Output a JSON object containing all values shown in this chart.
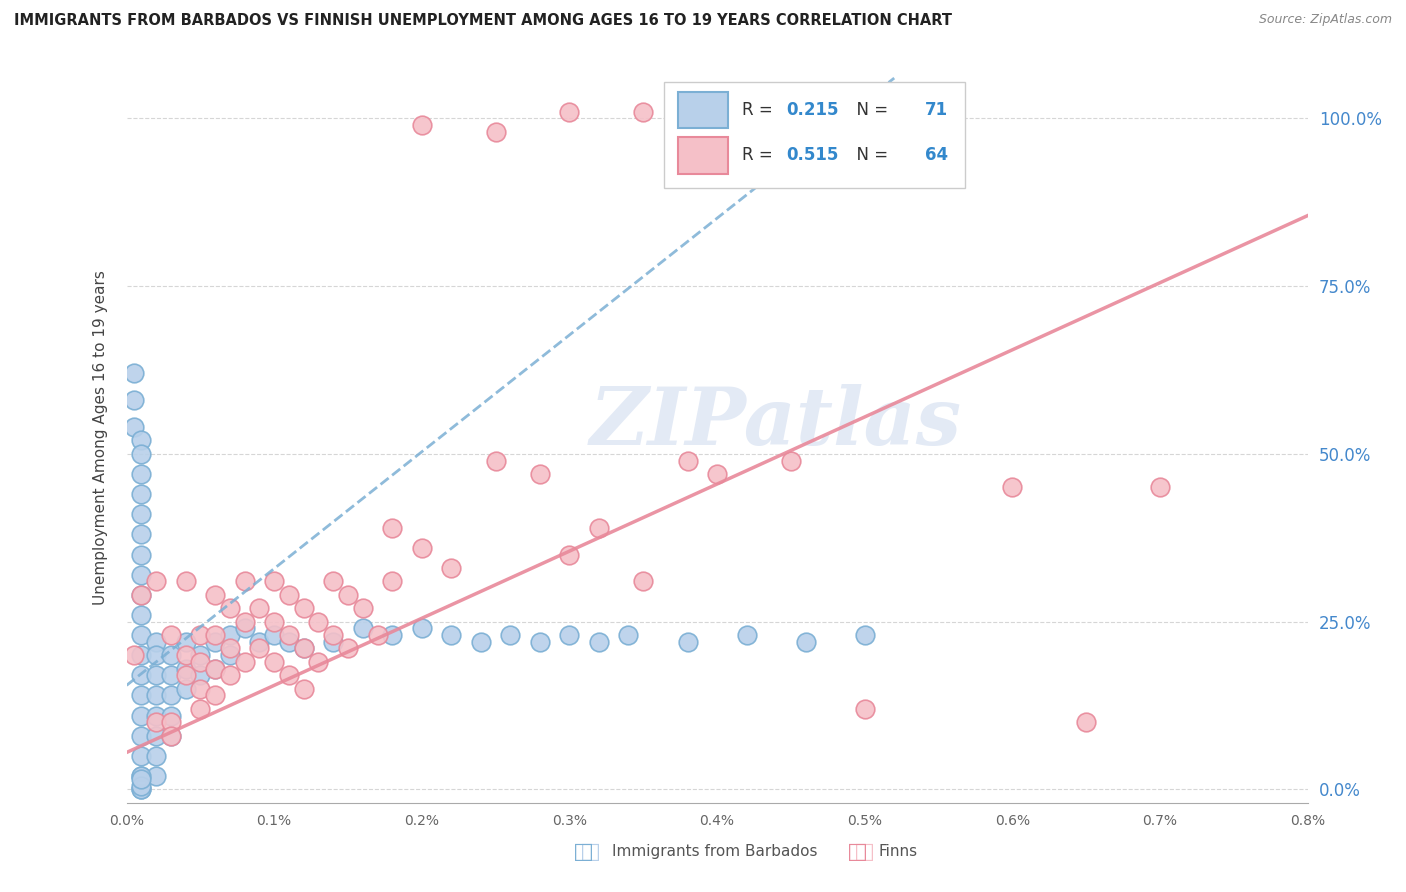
{
  "title": "IMMIGRANTS FROM BARBADOS VS FINNISH UNEMPLOYMENT AMONG AGES 16 TO 19 YEARS CORRELATION CHART",
  "source": "Source: ZipAtlas.com",
  "ylabel": "Unemployment Among Ages 16 to 19 years",
  "legend_label_blue": "Immigrants from Barbados",
  "legend_label_pink": "Finns",
  "watermark": "ZIPatlas",
  "background_color": "#ffffff",
  "blue_color": "#7bafd4",
  "blue_fill": "#b8d0ea",
  "pink_color": "#e8899a",
  "pink_fill": "#f5c0c8",
  "blue_R": 0.215,
  "blue_N": 71,
  "pink_R": 0.515,
  "pink_N": 64,
  "xlim": [
    0.0,
    0.008
  ],
  "ylim": [
    -0.02,
    1.07
  ],
  "x_ticks": [
    0.0,
    0.001,
    0.002,
    0.003,
    0.004,
    0.005,
    0.006,
    0.007,
    0.008
  ],
  "y_ticks": [
    0.0,
    0.25,
    0.5,
    0.75,
    1.0
  ],
  "blue_scatter": [
    [
      5e-05,
      0.62
    ],
    [
      5e-05,
      0.58
    ],
    [
      5e-05,
      0.54
    ],
    [
      0.0001,
      0.52
    ],
    [
      0.0001,
      0.5
    ],
    [
      0.0001,
      0.47
    ],
    [
      0.0001,
      0.44
    ],
    [
      0.0001,
      0.41
    ],
    [
      0.0001,
      0.38
    ],
    [
      0.0001,
      0.35
    ],
    [
      0.0001,
      0.32
    ],
    [
      0.0001,
      0.29
    ],
    [
      0.0001,
      0.26
    ],
    [
      0.0001,
      0.23
    ],
    [
      0.0001,
      0.2
    ],
    [
      0.0001,
      0.17
    ],
    [
      0.0001,
      0.14
    ],
    [
      0.0001,
      0.11
    ],
    [
      0.0001,
      0.08
    ],
    [
      0.0001,
      0.05
    ],
    [
      0.0001,
      0.02
    ],
    [
      0.0001,
      0.0
    ],
    [
      0.0002,
      0.22
    ],
    [
      0.0002,
      0.2
    ],
    [
      0.0002,
      0.17
    ],
    [
      0.0002,
      0.14
    ],
    [
      0.0002,
      0.11
    ],
    [
      0.0002,
      0.08
    ],
    [
      0.0002,
      0.05
    ],
    [
      0.0002,
      0.02
    ],
    [
      0.0003,
      0.2
    ],
    [
      0.0003,
      0.17
    ],
    [
      0.0003,
      0.14
    ],
    [
      0.0003,
      0.11
    ],
    [
      0.0003,
      0.08
    ],
    [
      0.0004,
      0.22
    ],
    [
      0.0004,
      0.18
    ],
    [
      0.0004,
      0.15
    ],
    [
      0.0005,
      0.2
    ],
    [
      0.0005,
      0.17
    ],
    [
      0.0006,
      0.22
    ],
    [
      0.0006,
      0.18
    ],
    [
      0.0007,
      0.23
    ],
    [
      0.0007,
      0.2
    ],
    [
      0.0008,
      0.24
    ],
    [
      0.0009,
      0.22
    ],
    [
      0.001,
      0.23
    ],
    [
      0.0011,
      0.22
    ],
    [
      0.0012,
      0.21
    ],
    [
      0.0014,
      0.22
    ],
    [
      0.0016,
      0.24
    ],
    [
      0.0018,
      0.23
    ],
    [
      0.002,
      0.24
    ],
    [
      0.0022,
      0.23
    ],
    [
      0.0024,
      0.22
    ],
    [
      0.0026,
      0.23
    ],
    [
      0.0028,
      0.22
    ],
    [
      0.003,
      0.23
    ],
    [
      0.0032,
      0.22
    ],
    [
      0.0034,
      0.23
    ],
    [
      0.0038,
      0.22
    ],
    [
      0.0042,
      0.23
    ],
    [
      0.0046,
      0.22
    ],
    [
      0.005,
      0.23
    ],
    [
      0.0001,
      0.02
    ],
    [
      0.0001,
      0.0
    ],
    [
      0.0001,
      0.005
    ],
    [
      0.0001,
      0.015
    ]
  ],
  "pink_scatter": [
    [
      5e-05,
      0.2
    ],
    [
      0.0001,
      0.29
    ],
    [
      0.0002,
      0.31
    ],
    [
      0.0002,
      0.1
    ],
    [
      0.0003,
      0.23
    ],
    [
      0.0003,
      0.1
    ],
    [
      0.0003,
      0.08
    ],
    [
      0.0004,
      0.31
    ],
    [
      0.0004,
      0.2
    ],
    [
      0.0004,
      0.17
    ],
    [
      0.0005,
      0.23
    ],
    [
      0.0005,
      0.19
    ],
    [
      0.0005,
      0.15
    ],
    [
      0.0005,
      0.12
    ],
    [
      0.0006,
      0.29
    ],
    [
      0.0006,
      0.23
    ],
    [
      0.0006,
      0.18
    ],
    [
      0.0006,
      0.14
    ],
    [
      0.0007,
      0.27
    ],
    [
      0.0007,
      0.21
    ],
    [
      0.0007,
      0.17
    ],
    [
      0.0008,
      0.31
    ],
    [
      0.0008,
      0.25
    ],
    [
      0.0008,
      0.19
    ],
    [
      0.0009,
      0.27
    ],
    [
      0.0009,
      0.21
    ],
    [
      0.001,
      0.31
    ],
    [
      0.001,
      0.25
    ],
    [
      0.001,
      0.19
    ],
    [
      0.0011,
      0.29
    ],
    [
      0.0011,
      0.23
    ],
    [
      0.0011,
      0.17
    ],
    [
      0.0012,
      0.27
    ],
    [
      0.0012,
      0.21
    ],
    [
      0.0012,
      0.15
    ],
    [
      0.0013,
      0.25
    ],
    [
      0.0013,
      0.19
    ],
    [
      0.0014,
      0.31
    ],
    [
      0.0014,
      0.23
    ],
    [
      0.0015,
      0.29
    ],
    [
      0.0015,
      0.21
    ],
    [
      0.0016,
      0.27
    ],
    [
      0.0017,
      0.23
    ],
    [
      0.0018,
      0.39
    ],
    [
      0.0018,
      0.31
    ],
    [
      0.002,
      0.36
    ],
    [
      0.0022,
      0.33
    ],
    [
      0.0025,
      0.49
    ],
    [
      0.0028,
      0.47
    ],
    [
      0.003,
      0.35
    ],
    [
      0.0032,
      0.39
    ],
    [
      0.0035,
      0.31
    ],
    [
      0.0038,
      0.49
    ],
    [
      0.004,
      0.47
    ],
    [
      0.0045,
      0.49
    ],
    [
      0.002,
      0.99
    ],
    [
      0.0025,
      0.98
    ],
    [
      0.003,
      1.01
    ],
    [
      0.0035,
      1.01
    ],
    [
      0.006,
      0.45
    ],
    [
      0.007,
      0.45
    ],
    [
      0.005,
      0.12
    ],
    [
      0.0065,
      0.1
    ]
  ],
  "blue_trend_x": [
    0.0,
    0.0052
  ],
  "blue_trend_y": [
    0.155,
    1.06
  ],
  "pink_trend_x": [
    0.0,
    0.008
  ],
  "pink_trend_y": [
    0.055,
    0.855
  ]
}
